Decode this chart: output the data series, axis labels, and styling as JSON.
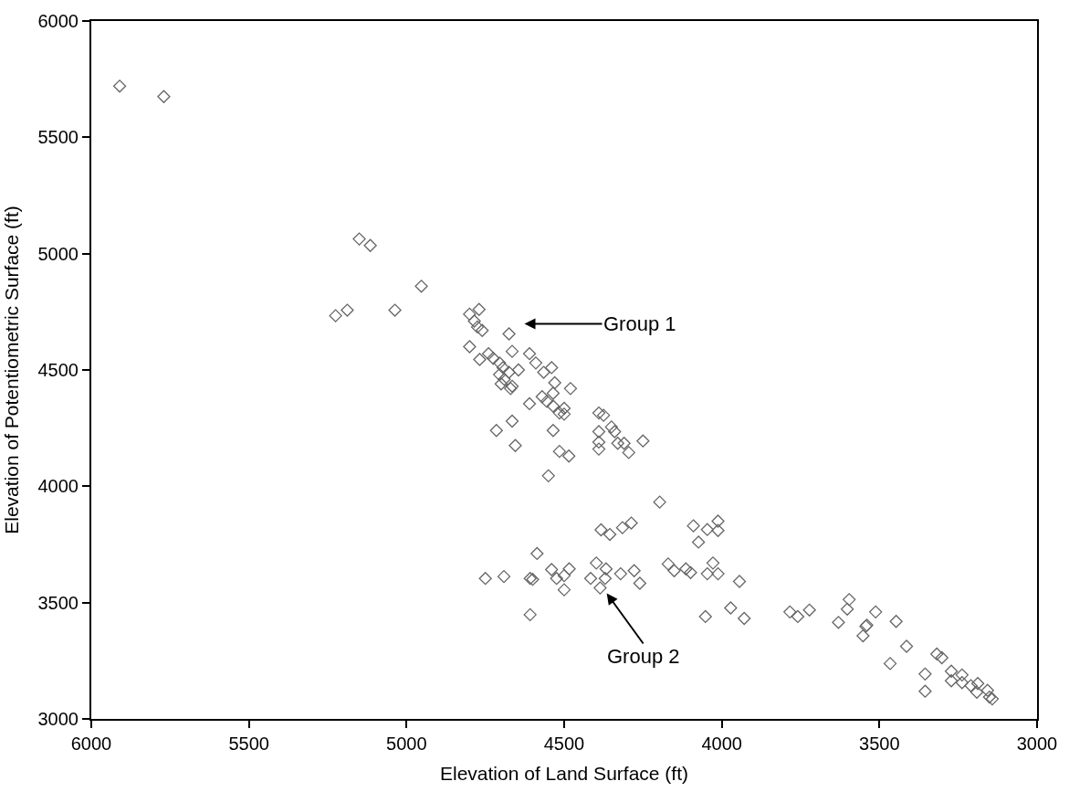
{
  "chart_data": {
    "type": "scatter",
    "xlabel": "Elevation of Land Surface (ft)",
    "ylabel": "Elevation of Potentiometric Surface (ft)",
    "xlim": [
      6000,
      3000
    ],
    "xticks": [
      6000,
      5500,
      5000,
      4500,
      4000,
      3500,
      3000
    ],
    "ylim": [
      3000,
      6000
    ],
    "yticks": [
      3000,
      3500,
      4000,
      4500,
      5000,
      5500,
      6000
    ],
    "marker": "diamond",
    "annotations": [
      "Group 1",
      "Group 2"
    ],
    "series": [
      {
        "color": "#666666",
        "x": [
          5910,
          5770,
          5150,
          5115,
          5225,
          5188,
          5037,
          4953,
          4800,
          4785,
          4775,
          4770,
          4760,
          4800,
          4768,
          4740,
          4725,
          4705,
          4694,
          4705,
          4690,
          4675,
          4700,
          4670,
          4645,
          4665,
          4675,
          4665,
          4665,
          4715,
          4655,
          4610,
          4590,
          4565,
          4540,
          4530,
          4535,
          4570,
          4555,
          4610,
          4535,
          4515,
          4500,
          4480,
          4500,
          4535,
          4515,
          4485,
          4550,
          4390,
          4375,
          4350,
          4340,
          4330,
          4310,
          4390,
          4390,
          4390,
          4295,
          4250,
          4197,
          4383,
          4355,
          4315,
          4287,
          4090,
          4046,
          4012,
          4012,
          4074,
          4586,
          4750,
          4691,
          4608,
          4600,
          4540,
          4524,
          4500,
          4484,
          4500,
          4398,
          4416,
          4370,
          4367,
          4386,
          4321,
          4278,
          4260,
          4170,
          4151,
          4114,
          4099,
          4028,
          4046,
          4012,
          3944,
          4608,
          4052,
          3972,
          3929,
          3784,
          3759,
          3722,
          3596,
          3602,
          3630,
          3543,
          3552,
          3512,
          3540,
          3447,
          3414,
          3466,
          3318,
          3302,
          3355,
          3355,
          3272,
          3272,
          3238,
          3238,
          3210,
          3188,
          3191,
          3157,
          3142,
          3151
        ],
        "values": [
          5720,
          5675,
          5063,
          5035,
          4733,
          4757,
          4757,
          4860,
          4740,
          4710,
          4685,
          4760,
          4670,
          4600,
          4545,
          4570,
          4550,
          4530,
          4510,
          4480,
          4460,
          4490,
          4440,
          4420,
          4500,
          4430,
          4655,
          4580,
          4280,
          4240,
          4175,
          4570,
          4530,
          4490,
          4510,
          4445,
          4400,
          4385,
          4365,
          4355,
          4345,
          4315,
          4335,
          4420,
          4310,
          4240,
          4150,
          4130,
          4045,
          4315,
          4305,
          4255,
          4235,
          4185,
          4185,
          4235,
          4190,
          4160,
          4145,
          4195,
          3932,
          3813,
          3793,
          3822,
          3842,
          3830,
          3814,
          3850,
          3810,
          3760,
          3711,
          3604,
          3612,
          3604,
          3600,
          3642,
          3604,
          3616,
          3645,
          3555,
          3670,
          3604,
          3604,
          3645,
          3563,
          3624,
          3637,
          3583,
          3666,
          3637,
          3645,
          3629,
          3670,
          3624,
          3624,
          3591,
          3448,
          3440,
          3477,
          3432,
          3460,
          3440,
          3468,
          3513,
          3472,
          3415,
          3398,
          3357,
          3460,
          3403,
          3419,
          3312,
          3238,
          3279,
          3263,
          3193,
          3119,
          3205,
          3164,
          3189,
          3156,
          3143,
          3152,
          3115,
          3123,
          3086,
          3094
        ]
      }
    ]
  }
}
